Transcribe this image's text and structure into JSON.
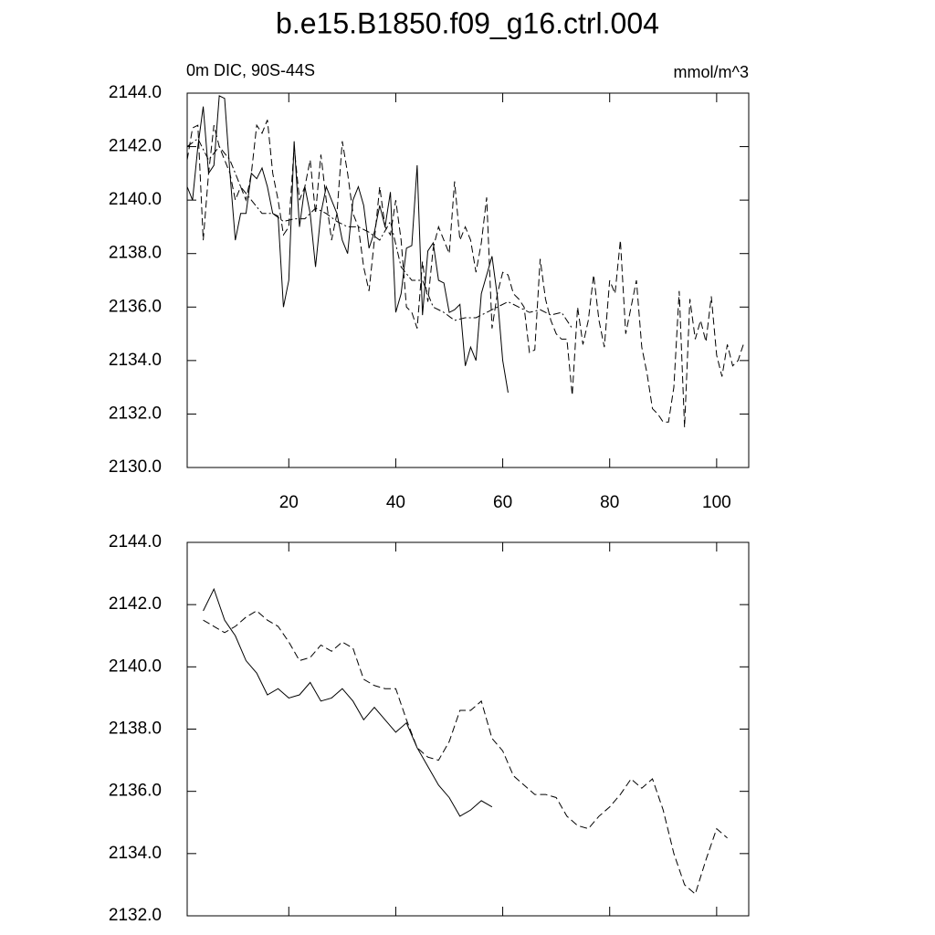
{
  "chart_data": [
    {
      "type": "line",
      "title": "b.e15.B1850.f09_g16.ctrl.004",
      "subtitle": "0m DIC, 90S-44S",
      "units": "mmol/m^3",
      "xlim": [
        1,
        106
      ],
      "xticks": [
        20,
        40,
        60,
        80,
        100
      ],
      "ylim": [
        2130,
        2144
      ],
      "yticks": [
        {
          "value": 2130,
          "label": "2130.0"
        },
        {
          "value": 2132,
          "label": "2132.0"
        },
        {
          "value": 2134,
          "label": "2134.0"
        },
        {
          "value": 2136,
          "label": "2136.0"
        },
        {
          "value": 2138,
          "label": "2138.0"
        },
        {
          "value": 2140,
          "label": "2140.0"
        },
        {
          "value": 2142,
          "label": "2142.0"
        },
        {
          "value": 2144,
          "label": "2144.0"
        }
      ],
      "series": [
        {
          "color": "#000000",
          "dash": "solid",
          "x": [
            1,
            2,
            3,
            4,
            5,
            6,
            7,
            8,
            9,
            10,
            11,
            12,
            13,
            14,
            15,
            16,
            17,
            18,
            19,
            20,
            21,
            22,
            23,
            24,
            25,
            26,
            27,
            28,
            29,
            30,
            31,
            32,
            33,
            34,
            35,
            36,
            37,
            38,
            39,
            40,
            41,
            42,
            43,
            44,
            45,
            46,
            47,
            48,
            49,
            50,
            51,
            52,
            53,
            54,
            55,
            56,
            57,
            58,
            59,
            60,
            61
          ],
          "values": [
            2140.5,
            2140,
            2142,
            2143.5,
            2141,
            2141.3,
            2143.9,
            2143.8,
            2141,
            2138.5,
            2139.5,
            2139.5,
            2141,
            2140.8,
            2141.2,
            2140.5,
            2139.5,
            2139.4,
            2136,
            2137,
            2142.2,
            2139,
            2140.5,
            2139.5,
            2137.5,
            2139.5,
            2140.5,
            2140,
            2139.5,
            2138.5,
            2138,
            2140,
            2140.5,
            2139.8,
            2138.2,
            2138.8,
            2139.8,
            2139,
            2140.3,
            2135.8,
            2136.5,
            2138.2,
            2138.3,
            2141.3,
            2135.7,
            2138.1,
            2138.4,
            2137,
            2136.9,
            2135.8,
            2135.9,
            2136.1,
            2133.8,
            2134.5,
            2134,
            2136.5,
            2137.2,
            2137.9,
            2136.4,
            2134,
            2132.8
          ]
        },
        {
          "color": "#000000",
          "dash": "dashed",
          "x": [
            1,
            2,
            3,
            4,
            5,
            6,
            7,
            8,
            9,
            10,
            11,
            12,
            13,
            14,
            15,
            16,
            17,
            18,
            19,
            20,
            21,
            22,
            23,
            24,
            25,
            26,
            27,
            28,
            29,
            30,
            31,
            32,
            33,
            34,
            35,
            36,
            37,
            38,
            39,
            40,
            41,
            42,
            43,
            44,
            45,
            46,
            47,
            48,
            49,
            50,
            51,
            52,
            53,
            54,
            55,
            56,
            57,
            58,
            59,
            60,
            61,
            62,
            63,
            64,
            65,
            66,
            67,
            68,
            69,
            70,
            71,
            72,
            73,
            74,
            75,
            76,
            77,
            78,
            79,
            80,
            81,
            82,
            83,
            84,
            85,
            86,
            87,
            88,
            89,
            90,
            91,
            92,
            93,
            94,
            95,
            96,
            97,
            98,
            99,
            100,
            101,
            102,
            103,
            104,
            105
          ],
          "values": [
            2141.5,
            2142.7,
            2142.8,
            2138.5,
            2141,
            2142.8,
            2142,
            2141.5,
            2141,
            2140,
            2140.5,
            2140,
            2141,
            2142.8,
            2142.5,
            2143,
            2141,
            2140,
            2138.7,
            2139,
            2142,
            2140,
            2140.5,
            2141.5,
            2139.5,
            2141.7,
            2140,
            2138.5,
            2139.5,
            2142.2,
            2141,
            2139.5,
            2139,
            2137.5,
            2136.6,
            2138.5,
            2140.5,
            2139,
            2138.7,
            2140,
            2138.5,
            2136,
            2135.8,
            2135.2,
            2137.7,
            2136.2,
            2138.2,
            2139,
            2138.5,
            2138,
            2140.7,
            2138.5,
            2139,
            2138.5,
            2137.3,
            2138.4,
            2140.1,
            2135.2,
            2136.5,
            2137.3,
            2137.2,
            2136.5,
            2136.3,
            2136,
            2134.3,
            2134.4,
            2137.8,
            2136.3,
            2135.5,
            2135,
            2134.8,
            2134.8,
            2132.7,
            2136,
            2134.6,
            2135.5,
            2137.2,
            2135.5,
            2134.5,
            2137,
            2136.5,
            2138.5,
            2135,
            2136,
            2137,
            2134.5,
            2133.5,
            2132.2,
            2132,
            2131.7,
            2131.7,
            2133,
            2136.6,
            2131.5,
            2136.3,
            2134.8,
            2135.5,
            2134.7,
            2136.4,
            2134.2,
            2133.4,
            2134.6,
            2133.8,
            2134,
            2134.6
          ]
        },
        {
          "color": "#000000",
          "dash": "dashdot",
          "x": [
            1,
            3,
            5,
            7,
            9,
            11,
            13,
            15,
            17,
            19,
            21,
            23,
            25,
            27,
            29,
            31,
            33,
            35,
            37,
            39,
            41,
            43,
            45,
            47,
            49,
            51,
            53,
            55,
            57,
            59,
            61,
            63,
            65,
            67,
            69,
            71,
            73
          ],
          "values": [
            2142,
            2142.3,
            2141.5,
            2142,
            2141.5,
            2140.5,
            2140,
            2139.5,
            2139.5,
            2139.2,
            2139.3,
            2139.3,
            2139.7,
            2139.5,
            2139.2,
            2139,
            2139,
            2138.8,
            2138.5,
            2139.2,
            2137.5,
            2137,
            2137,
            2136,
            2135.8,
            2135.5,
            2135.6,
            2135.6,
            2135.8,
            2136,
            2136.2,
            2136,
            2135.8,
            2135.9,
            2135.7,
            2135.8,
            2135.2
          ]
        }
      ]
    },
    {
      "type": "line",
      "xlim": [
        1,
        106
      ],
      "xticks": [
        20,
        40,
        60,
        80,
        100
      ],
      "ylim": [
        2132,
        2144
      ],
      "yticks": [
        {
          "value": 2132,
          "label": "2132.0"
        },
        {
          "value": 2134,
          "label": "2134.0"
        },
        {
          "value": 2136,
          "label": "2136.0"
        },
        {
          "value": 2138,
          "label": "2138.0"
        },
        {
          "value": 2140,
          "label": "2140.0"
        },
        {
          "value": 2142,
          "label": "2142.0"
        },
        {
          "value": 2144,
          "label": "2144.0"
        }
      ],
      "series": [
        {
          "color": "#000000",
          "dash": "solid",
          "x": [
            4,
            6,
            8,
            10,
            12,
            14,
            16,
            18,
            20,
            22,
            24,
            26,
            28,
            30,
            32,
            34,
            36,
            38,
            40,
            42,
            44,
            46,
            48,
            50,
            52,
            54,
            56,
            58
          ],
          "values": [
            2141.8,
            2142.5,
            2141.5,
            2141,
            2140.2,
            2139.8,
            2139.1,
            2139.3,
            2139,
            2139.1,
            2139.5,
            2138.9,
            2139,
            2139.3,
            2138.9,
            2138.3,
            2138.7,
            2138.3,
            2137.9,
            2138.2,
            2137.4,
            2136.8,
            2136.2,
            2135.8,
            2135.2,
            2135.4,
            2135.7,
            2135.5
          ]
        },
        {
          "color": "#000000",
          "dash": "dashed",
          "x": [
            4,
            6,
            8,
            10,
            12,
            14,
            16,
            18,
            20,
            22,
            24,
            26,
            28,
            30,
            32,
            34,
            36,
            38,
            40,
            42,
            44,
            46,
            48,
            50,
            52,
            54,
            56,
            58,
            60,
            62,
            64,
            66,
            68,
            70,
            72,
            74,
            76,
            78,
            80,
            82,
            84,
            86,
            88,
            90,
            92,
            94,
            96,
            98,
            100,
            102
          ],
          "values": [
            2141.5,
            2141.3,
            2141.1,
            2141.3,
            2141.6,
            2141.8,
            2141.5,
            2141.3,
            2140.8,
            2140.2,
            2140.3,
            2140.7,
            2140.5,
            2140.8,
            2140.6,
            2139.6,
            2139.4,
            2139.3,
            2139.3,
            2138.3,
            2137.4,
            2137.1,
            2137,
            2137.6,
            2138.6,
            2138.6,
            2138.9,
            2137.7,
            2137.3,
            2136.5,
            2136.2,
            2135.9,
            2135.9,
            2135.8,
            2135.2,
            2134.9,
            2134.8,
            2135.2,
            2135.5,
            2135.9,
            2136.4,
            2136.1,
            2136.4,
            2135.4,
            2134,
            2133,
            2132.7,
            2133.8,
            2134.8,
            2134.5
          ]
        }
      ]
    }
  ]
}
